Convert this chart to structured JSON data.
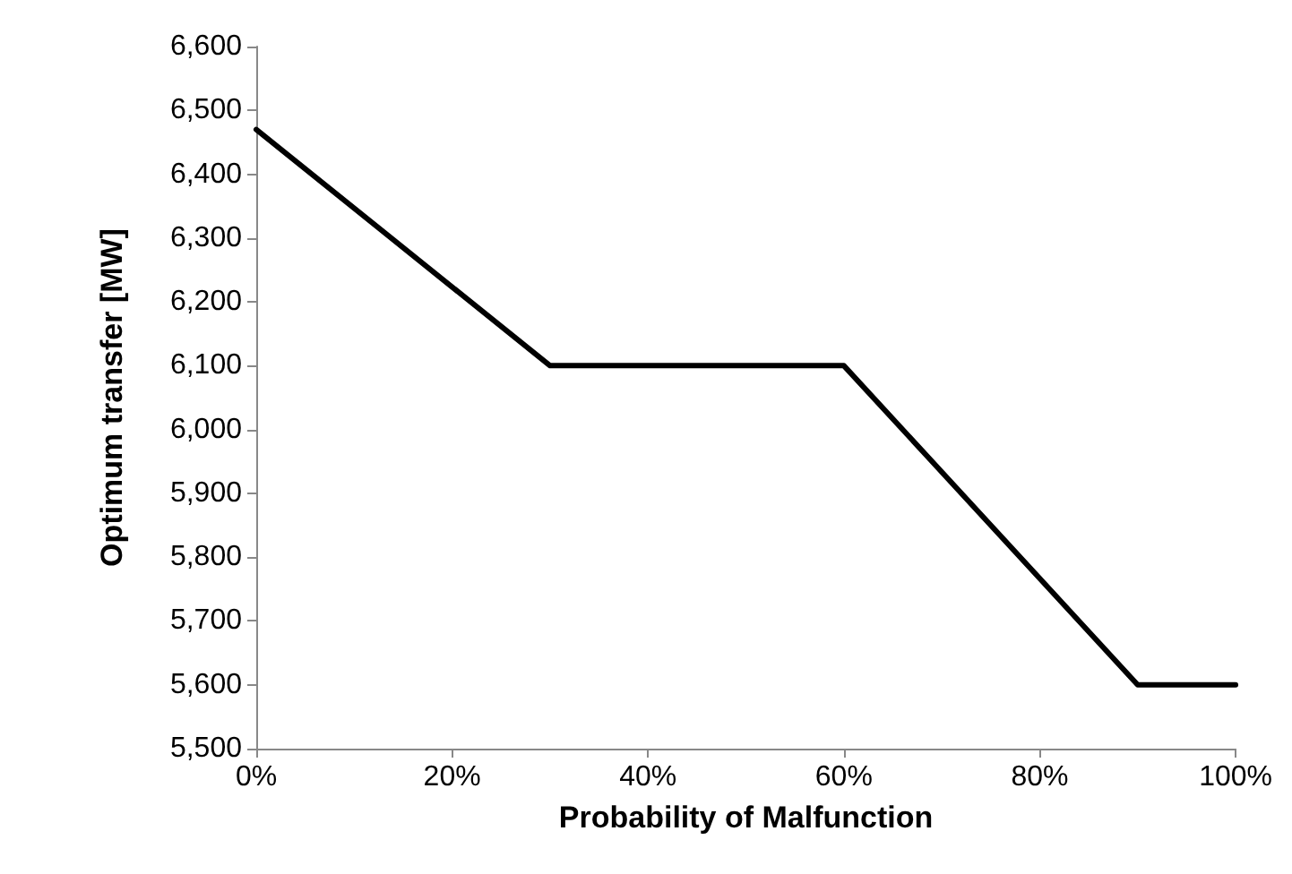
{
  "chart_data": {
    "type": "line",
    "xlabel": "Probability of Malfunction",
    "ylabel": "Optimum transfer [MW]",
    "x": [
      0,
      30,
      60,
      90,
      100
    ],
    "series": [
      {
        "color": "#000000",
        "values": [
          6470,
          6100,
          6100,
          5600,
          5600
        ]
      }
    ],
    "xlim": [
      0,
      100
    ],
    "xticks": [
      {
        "value": 0,
        "label": "0%"
      },
      {
        "value": 20,
        "label": "20%"
      },
      {
        "value": 40,
        "label": "40%"
      },
      {
        "value": 60,
        "label": "60%"
      },
      {
        "value": 80,
        "label": "80%"
      },
      {
        "value": 100,
        "label": "100%"
      }
    ],
    "ylim": [
      5500,
      6600
    ],
    "yticks": [
      {
        "value": 5500,
        "label": "5,500"
      },
      {
        "value": 5600,
        "label": "5,600"
      },
      {
        "value": 5700,
        "label": "5,700"
      },
      {
        "value": 5800,
        "label": "5,800"
      },
      {
        "value": 5900,
        "label": "5,900"
      },
      {
        "value": 6000,
        "label": "6,000"
      },
      {
        "value": 6100,
        "label": "6,100"
      },
      {
        "value": 6200,
        "label": "6,200"
      },
      {
        "value": 6300,
        "label": "6,300"
      },
      {
        "value": 6400,
        "label": "6,400"
      },
      {
        "value": 6500,
        "label": "6,500"
      },
      {
        "value": 6600,
        "label": "6,600"
      }
    ],
    "grid": false,
    "marker": "none",
    "line_style": "solid"
  }
}
